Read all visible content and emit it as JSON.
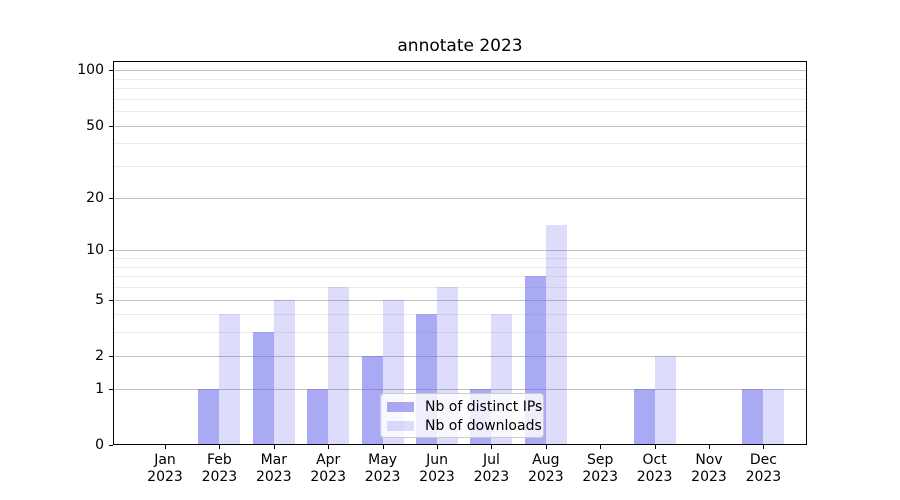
{
  "chart_data": {
    "type": "bar",
    "title": "annotate 2023",
    "categories": [
      "Jan 2023",
      "Feb 2023",
      "Mar 2023",
      "Apr 2023",
      "May 2023",
      "Jun 2023",
      "Jul 2023",
      "Aug 2023",
      "Sep 2023",
      "Oct 2023",
      "Nov 2023",
      "Dec 2023"
    ],
    "series": [
      {
        "name": "Nb of distinct IPs",
        "values": [
          0,
          1,
          3,
          1,
          2,
          4,
          1,
          7,
          0,
          1,
          0,
          1
        ],
        "color": "rgba(100,100,235,0.55)"
      },
      {
        "name": "Nb of downloads",
        "values": [
          0,
          4,
          5,
          6,
          5,
          6,
          4,
          14,
          0,
          2,
          0,
          1
        ],
        "color": "rgba(100,100,235,0.22)"
      }
    ],
    "xlabel": "",
    "ylabel": "",
    "yscale": "log1p",
    "ylim": [
      0,
      112
    ],
    "yticks": [
      0,
      1,
      2,
      5,
      10,
      20,
      50,
      100
    ],
    "ytick_labels": [
      "0",
      "1",
      "2",
      "5",
      "10",
      "20",
      "50",
      "100"
    ],
    "yticks_minor": [
      3,
      4,
      6,
      7,
      8,
      9,
      30,
      40,
      60,
      70,
      80,
      90
    ],
    "grid": true,
    "legend": {
      "position": "lower center",
      "labels": [
        "Nb of distinct IPs",
        "Nb of downloads"
      ]
    },
    "colors": {
      "bar_distinct_ips": "rgba(100,100,235,0.55)",
      "bar_downloads": "rgba(100,100,235,0.22)",
      "grid_major": "#c0c0c0",
      "grid_minor": "#eaeaea",
      "spine": "#000000",
      "text": "#000000",
      "legend_bg": "rgba(255,255,255,0.8)",
      "legend_border": "#cccccc"
    }
  }
}
